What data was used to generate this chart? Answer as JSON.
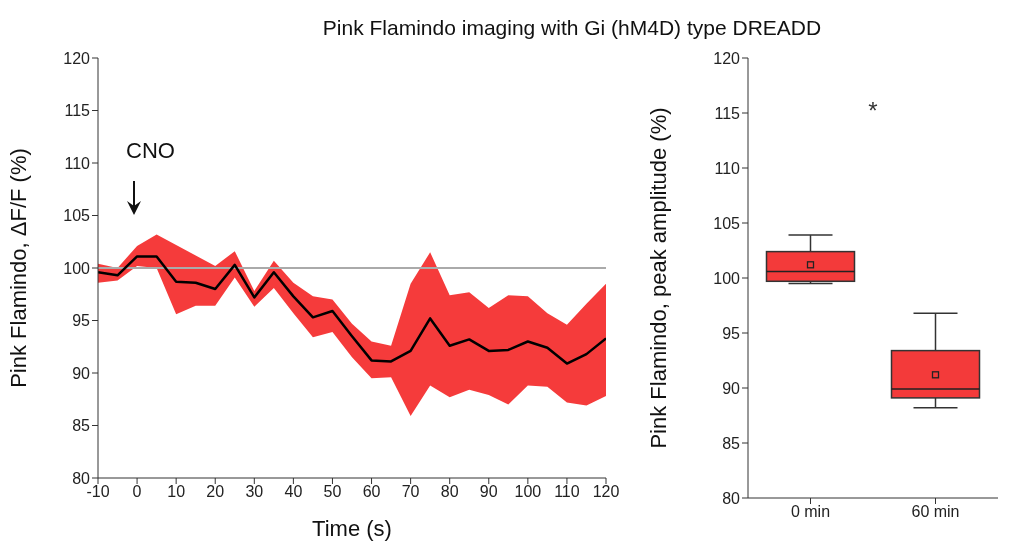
{
  "chart_data": [
    {
      "type": "line",
      "title": "Pink Flamindo imaging with Gi (hM4D) type DREADD",
      "xlabel": "Time (s)",
      "ylabel": "Pink Flamindo, ΔF/F (%)",
      "x": [
        -10,
        -5,
        0,
        5,
        10,
        15,
        20,
        25,
        30,
        35,
        40,
        45,
        50,
        55,
        60,
        65,
        70,
        75,
        80,
        85,
        90,
        95,
        100,
        105,
        110,
        115,
        120
      ],
      "series": [
        {
          "color": "#000000",
          "values": [
            99.6,
            99.3,
            101.1,
            101.1,
            98.7,
            98.6,
            98.0,
            100.3,
            97.2,
            99.6,
            97.3,
            95.3,
            95.9,
            93.5,
            91.2,
            91.1,
            92.1,
            95.2,
            92.6,
            93.2,
            92.1,
            92.2,
            93.0,
            92.4,
            90.9,
            91.8,
            93.3
          ],
          "lower": [
            98.6,
            98.8,
            100.2,
            100.0,
            95.6,
            96.4,
            96.4,
            99.1,
            96.3,
            98.1,
            95.7,
            93.4,
            93.9,
            91.5,
            89.5,
            89.6,
            85.9,
            88.8,
            87.7,
            88.4,
            87.9,
            87.0,
            88.8,
            88.7,
            87.2,
            86.9,
            87.8
          ],
          "upper": [
            100.4,
            100.0,
            102.1,
            103.2,
            102.2,
            101.2,
            100.2,
            101.6,
            97.8,
            100.7,
            98.6,
            97.3,
            97.0,
            94.7,
            93.0,
            92.6,
            98.5,
            101.5,
            97.4,
            97.7,
            96.2,
            97.4,
            97.3,
            95.7,
            94.6,
            96.6,
            98.5
          ]
        }
      ],
      "xlim": [
        -10,
        120
      ],
      "xticks": [
        -10,
        0,
        10,
        20,
        30,
        40,
        50,
        60,
        70,
        80,
        90,
        100,
        110,
        120
      ],
      "ylim": [
        80,
        120
      ],
      "yticks": [
        80,
        85,
        90,
        95,
        100,
        105,
        110,
        115,
        120
      ],
      "ref_lines": [
        {
          "axis": "y",
          "value": 100,
          "color": "#aaaaaa"
        }
      ],
      "annotations": [
        "CNO"
      ],
      "color": "#f53b3b",
      "grid": false,
      "legend": false,
      "marker": "none",
      "line_style": "solid"
    },
    {
      "type": "box",
      "ylabel": "Pink Flamindo, peak amplitude (%)",
      "categories": [
        "0 min",
        "60 min"
      ],
      "color": "#f33a3a",
      "boxes": [
        {
          "low": 99.5,
          "q1": 99.7,
          "median": 100.6,
          "q3": 102.4,
          "high": 103.9,
          "mean": 101.2
        },
        {
          "low": 88.2,
          "q1": 89.1,
          "median": 89.9,
          "q3": 93.4,
          "high": 96.8,
          "mean": 91.2
        }
      ],
      "ylim": [
        80,
        120
      ],
      "yticks": [
        80,
        85,
        90,
        95,
        100,
        105,
        110,
        115,
        120
      ],
      "annotations": [
        "*"
      ],
      "grid": false,
      "legend": false
    }
  ]
}
